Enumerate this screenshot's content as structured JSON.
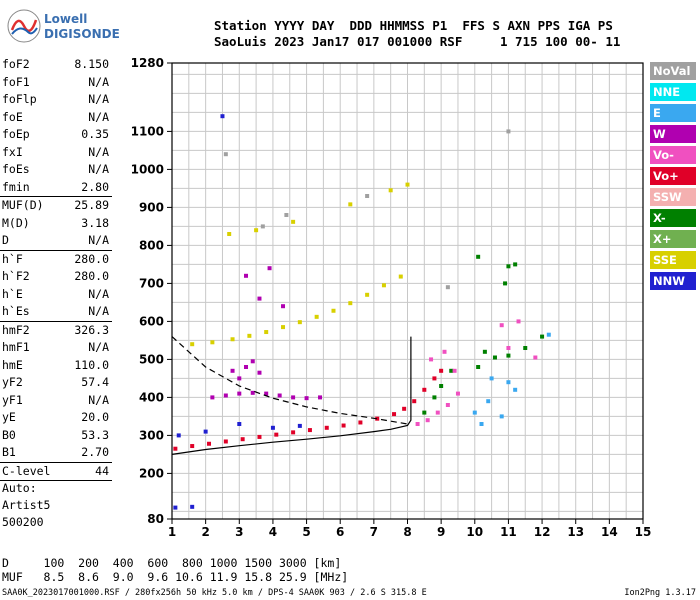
{
  "logo": {
    "line1": "Lowell",
    "line2": "DIGISONDE"
  },
  "header": {
    "line1": "Station YYYY DAY  DDD HHMMSS P1  FFS S AXN PPS IGA PS",
    "line2": "SaoLuis 2023 Jan17 017 001000 RSF     1 715 100 00- 11"
  },
  "params": {
    "group1": [
      {
        "label": "foF2",
        "value": "8.150"
      },
      {
        "label": "foF1",
        "value": "N/A"
      },
      {
        "label": "foFlp",
        "value": "N/A"
      },
      {
        "label": "foE",
        "value": "N/A"
      },
      {
        "label": "foEp",
        "value": "0.35"
      },
      {
        "label": "fxI",
        "value": "N/A"
      },
      {
        "label": "foEs",
        "value": "N/A"
      },
      {
        "label": "fmin",
        "value": "2.80"
      }
    ],
    "group2": [
      {
        "label": "MUF(D)",
        "value": "25.89"
      },
      {
        "label": "M(D)",
        "value": "3.18"
      },
      {
        "label": "D",
        "value": "N/A"
      }
    ],
    "group3": [
      {
        "label": "h`F",
        "value": "280.0"
      },
      {
        "label": "h`F2",
        "value": "280.0"
      },
      {
        "label": "h`E",
        "value": "N/A"
      },
      {
        "label": "h`Es",
        "value": "N/A"
      }
    ],
    "group4": [
      {
        "label": "hmF2",
        "value": "326.3"
      },
      {
        "label": "hmF1",
        "value": "N/A"
      },
      {
        "label": "hmE",
        "value": "110.0"
      },
      {
        "label": "yF2",
        "value": "57.4"
      },
      {
        "label": "yF1",
        "value": "N/A"
      },
      {
        "label": "yE",
        "value": "20.0"
      },
      {
        "label": "B0",
        "value": "53.3"
      },
      {
        "label": "B1",
        "value": "2.70"
      }
    ],
    "group5": [
      {
        "label": "C-level",
        "value": "44"
      }
    ]
  },
  "auto": {
    "line1": "Auto:",
    "line2": "Artist5",
    "line3": "500200"
  },
  "bottom": {
    "d_line": "D     100  200  400  600  800 1000 1500 3000 [km]",
    "muf_line": "MUF   8.5  8.6  9.0  9.6 10.6 11.9 15.8 25.9 [MHz]"
  },
  "footer": "SAA0K_2023017001000.RSF / 280fx256h 50 kHz 5.0 km / DPS-4 SAA0K 903 / 2.6 S 315.8 E",
  "version": "Ion2Png 1.3.17",
  "legend": [
    {
      "label": "NoVal",
      "color": "#a0a0a0"
    },
    {
      "label": "NNE",
      "color": "#00e8f0"
    },
    {
      "label": "E",
      "color": "#3aa8f0"
    },
    {
      "label": "W",
      "color": "#b000b0"
    },
    {
      "label": "Vo-",
      "color": "#f050c0"
    },
    {
      "label": "Vo+",
      "color": "#e00028"
    },
    {
      "label": "SSW",
      "color": "#f4b0b0"
    },
    {
      "label": "X-",
      "color": "#008000"
    },
    {
      "label": "X+",
      "color": "#70b050"
    },
    {
      "label": "SSE",
      "color": "#d8d000"
    },
    {
      "label": "NNW",
      "color": "#2020d0"
    }
  ],
  "chart_data": {
    "type": "scatter",
    "title": "",
    "xlabel": "",
    "ylabel": "",
    "xlim": [
      1,
      15
    ],
    "ylim": [
      80,
      1280
    ],
    "x_ticks": [
      1,
      2,
      3,
      4,
      5,
      6,
      7,
      8,
      9,
      10,
      11,
      12,
      13,
      14,
      15
    ],
    "y_ticks": [
      80,
      200,
      300,
      400,
      500,
      600,
      700,
      800,
      900,
      1000,
      1100,
      1280
    ],
    "grid": true,
    "legend_position": "right",
    "series": [
      {
        "color": "#e00028",
        "points": [
          [
            1.1,
            265
          ],
          [
            1.6,
            272
          ],
          [
            2.1,
            278
          ],
          [
            2.6,
            284
          ],
          [
            3.1,
            290
          ],
          [
            3.6,
            296
          ],
          [
            4.1,
            302
          ],
          [
            4.6,
            308
          ],
          [
            5.1,
            314
          ],
          [
            5.6,
            320
          ],
          [
            6.1,
            326
          ],
          [
            6.6,
            334
          ],
          [
            7.1,
            344
          ],
          [
            7.6,
            356
          ],
          [
            7.9,
            370
          ],
          [
            8.2,
            390
          ],
          [
            8.5,
            420
          ],
          [
            8.8,
            450
          ],
          [
            9.0,
            470
          ]
        ]
      },
      {
        "color": "#b000b0",
        "points": [
          [
            2.2,
            400
          ],
          [
            2.6,
            405
          ],
          [
            3.0,
            410
          ],
          [
            3.4,
            412
          ],
          [
            3.8,
            410
          ],
          [
            4.2,
            405
          ],
          [
            4.6,
            400
          ],
          [
            5.0,
            398
          ],
          [
            5.4,
            400
          ],
          [
            2.8,
            470
          ],
          [
            3.2,
            480
          ],
          [
            3.6,
            465
          ],
          [
            3.0,
            450
          ],
          [
            3.4,
            495
          ],
          [
            3.9,
            740
          ],
          [
            3.6,
            660
          ],
          [
            3.2,
            720
          ],
          [
            4.3,
            640
          ]
        ]
      },
      {
        "color": "#d8d000",
        "points": [
          [
            1.6,
            540
          ],
          [
            2.2,
            545
          ],
          [
            2.8,
            553
          ],
          [
            3.3,
            562
          ],
          [
            3.8,
            572
          ],
          [
            4.3,
            585
          ],
          [
            4.8,
            598
          ],
          [
            5.3,
            612
          ],
          [
            5.8,
            628
          ],
          [
            6.3,
            648
          ],
          [
            6.8,
            670
          ],
          [
            7.3,
            695
          ],
          [
            7.8,
            718
          ],
          [
            2.7,
            830
          ],
          [
            3.5,
            840
          ],
          [
            4.6,
            862
          ],
          [
            6.3,
            908
          ],
          [
            7.5,
            945
          ],
          [
            8.0,
            960
          ]
        ]
      },
      {
        "color": "#008000",
        "points": [
          [
            8.5,
            360
          ],
          [
            8.8,
            400
          ],
          [
            9.0,
            430
          ],
          [
            9.3,
            470
          ],
          [
            10.1,
            480
          ],
          [
            10.3,
            520
          ],
          [
            10.6,
            505
          ],
          [
            11.0,
            510
          ],
          [
            11.5,
            530
          ],
          [
            12.0,
            560
          ],
          [
            10.1,
            770
          ],
          [
            10.9,
            700
          ],
          [
            11.0,
            745
          ],
          [
            11.2,
            750
          ]
        ]
      },
      {
        "color": "#3aa8f0",
        "points": [
          [
            10.0,
            360
          ],
          [
            10.2,
            330
          ],
          [
            10.4,
            390
          ],
          [
            10.5,
            450
          ],
          [
            10.8,
            350
          ],
          [
            11.0,
            440
          ],
          [
            11.2,
            420
          ],
          [
            12.2,
            565
          ]
        ]
      },
      {
        "color": "#f050c0",
        "points": [
          [
            8.3,
            330
          ],
          [
            8.6,
            340
          ],
          [
            8.9,
            360
          ],
          [
            9.2,
            380
          ],
          [
            9.5,
            410
          ],
          [
            8.7,
            500
          ],
          [
            9.1,
            520
          ],
          [
            9.4,
            470
          ],
          [
            10.8,
            590
          ],
          [
            11.3,
            600
          ],
          [
            11.0,
            530
          ],
          [
            11.8,
            505
          ]
        ]
      },
      {
        "color": "#2020d0",
        "points": [
          [
            1.1,
            110
          ],
          [
            1.6,
            112
          ],
          [
            2.5,
            1140
          ],
          [
            1.2,
            300
          ],
          [
            2.0,
            310
          ],
          [
            3.0,
            330
          ],
          [
            4.0,
            320
          ],
          [
            4.8,
            325
          ]
        ]
      },
      {
        "color": "#a0a0a0",
        "points": [
          [
            3.7,
            850
          ],
          [
            4.4,
            880
          ],
          [
            6.8,
            930
          ],
          [
            9.2,
            690
          ],
          [
            11.0,
            1100
          ],
          [
            2.6,
            1040
          ]
        ]
      }
    ],
    "curves": [
      {
        "name": "",
        "style": "solid",
        "x": [
          1,
          2,
          3,
          4,
          5,
          6,
          7,
          7.5,
          8,
          8.1,
          8.1
        ],
        "y": [
          250,
          263,
          273,
          282,
          290,
          299,
          310,
          316,
          326,
          340,
          560
        ]
      },
      {
        "name": "",
        "style": "dashed",
        "x": [
          1,
          2,
          3,
          4,
          5,
          6,
          7,
          8
        ],
        "y": [
          560,
          480,
          430,
          398,
          375,
          358,
          345,
          330
        ]
      }
    ]
  }
}
